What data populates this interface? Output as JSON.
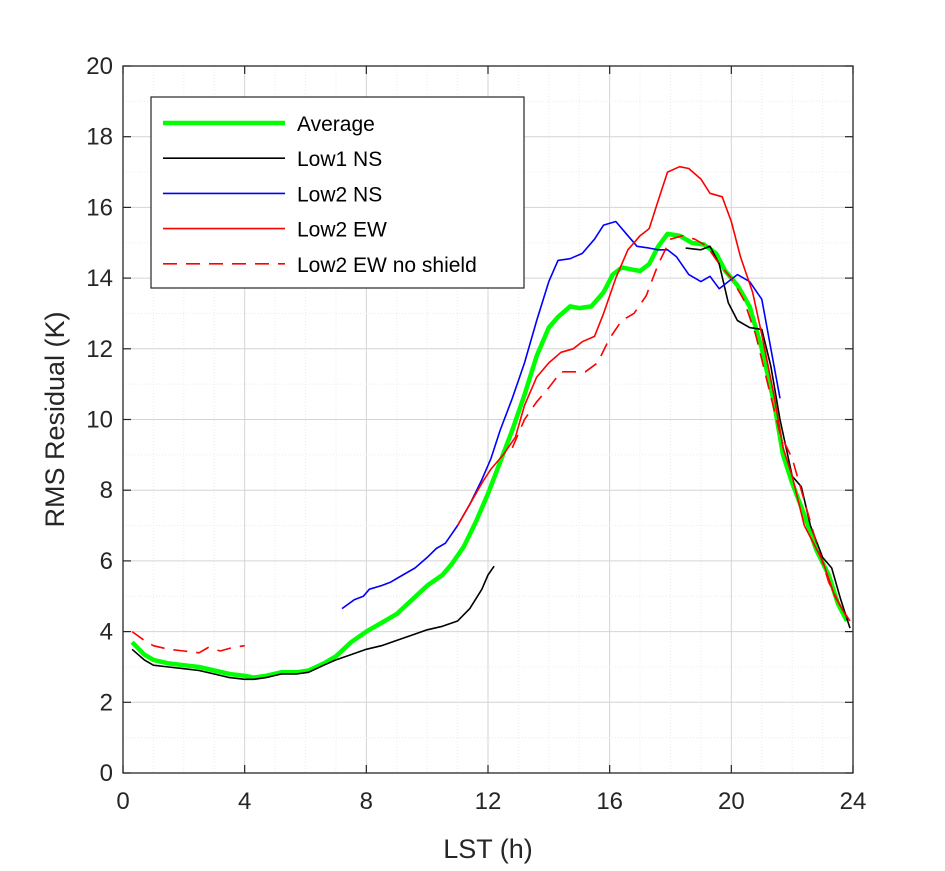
{
  "chart_data": {
    "type": "line",
    "title": "",
    "xlabel": "LST (h)",
    "ylabel": "RMS Residual (K)",
    "xlim": [
      0,
      24
    ],
    "ylim": [
      0,
      20
    ],
    "xticks": [
      0,
      4,
      8,
      12,
      16,
      20,
      24
    ],
    "yticks": [
      0,
      2,
      4,
      6,
      8,
      10,
      12,
      14,
      16,
      18,
      20
    ],
    "grid": "major and minor",
    "legend_position": "top-left",
    "series": [
      {
        "name": "Average",
        "color": "#00ff00",
        "style": "solid-thick",
        "segments": [
          [
            [
              0.3,
              3.7
            ],
            [
              0.7,
              3.35
            ],
            [
              1.0,
              3.2
            ],
            [
              1.5,
              3.1
            ],
            [
              2.0,
              3.05
            ],
            [
              2.5,
              3.0
            ],
            [
              3.0,
              2.9
            ],
            [
              3.5,
              2.8
            ],
            [
              4.0,
              2.75
            ],
            [
              4.3,
              2.7
            ],
            [
              4.7,
              2.75
            ],
            [
              5.2,
              2.85
            ],
            [
              5.7,
              2.85
            ],
            [
              6.1,
              2.9
            ],
            [
              6.6,
              3.1
            ],
            [
              7.0,
              3.3
            ],
            [
              7.5,
              3.7
            ],
            [
              8.0,
              4.0
            ],
            [
              8.5,
              4.25
            ],
            [
              9.0,
              4.5
            ],
            [
              9.5,
              4.9
            ],
            [
              10.0,
              5.3
            ],
            [
              10.5,
              5.6
            ],
            [
              10.8,
              5.9
            ],
            [
              11.2,
              6.4
            ],
            [
              11.6,
              7.1
            ],
            [
              12.0,
              7.9
            ],
            [
              12.4,
              8.8
            ],
            [
              12.8,
              9.7
            ],
            [
              13.2,
              10.7
            ],
            [
              13.6,
              11.8
            ],
            [
              14.0,
              12.6
            ],
            [
              14.3,
              12.9
            ],
            [
              14.7,
              13.2
            ],
            [
              15.0,
              13.15
            ],
            [
              15.4,
              13.2
            ],
            [
              15.8,
              13.6
            ],
            [
              16.1,
              14.1
            ],
            [
              16.4,
              14.3
            ],
            [
              16.7,
              14.25
            ],
            [
              17.0,
              14.2
            ],
            [
              17.3,
              14.4
            ],
            [
              17.6,
              14.9
            ],
            [
              17.9,
              15.25
            ],
            [
              18.3,
              15.2
            ],
            [
              18.7,
              15.0
            ],
            [
              19.1,
              14.95
            ],
            [
              19.5,
              14.7
            ],
            [
              19.8,
              14.2
            ],
            [
              20.2,
              13.8
            ],
            [
              20.6,
              13.2
            ],
            [
              21.0,
              12.0
            ],
            [
              21.4,
              10.5
            ],
            [
              21.7,
              9.0
            ],
            [
              22.0,
              8.2
            ],
            [
              22.4,
              7.3
            ],
            [
              22.8,
              6.3
            ],
            [
              23.2,
              5.6
            ],
            [
              23.5,
              4.8
            ],
            [
              23.8,
              4.3
            ]
          ]
        ]
      },
      {
        "name": "Low1 NS",
        "color": "#000000",
        "style": "solid",
        "segments": [
          [
            [
              0.3,
              3.5
            ],
            [
              0.7,
              3.2
            ],
            [
              1.0,
              3.05
            ],
            [
              1.5,
              3.0
            ],
            [
              2.0,
              2.95
            ],
            [
              2.5,
              2.9
            ],
            [
              3.0,
              2.8
            ],
            [
              3.5,
              2.7
            ],
            [
              4.0,
              2.65
            ],
            [
              4.3,
              2.65
            ],
            [
              4.7,
              2.7
            ],
            [
              5.2,
              2.8
            ],
            [
              5.7,
              2.8
            ],
            [
              6.1,
              2.85
            ],
            [
              6.6,
              3.05
            ],
            [
              7.0,
              3.2
            ],
            [
              7.5,
              3.35
            ],
            [
              8.0,
              3.5
            ],
            [
              8.5,
              3.6
            ],
            [
              9.0,
              3.75
            ],
            [
              9.5,
              3.9
            ],
            [
              10.0,
              4.05
            ],
            [
              10.5,
              4.15
            ],
            [
              11.0,
              4.3
            ],
            [
              11.4,
              4.65
            ],
            [
              11.8,
              5.2
            ],
            [
              12.0,
              5.6
            ],
            [
              12.2,
              5.85
            ]
          ],
          [
            [
              18.5,
              14.85
            ],
            [
              19.0,
              14.8
            ],
            [
              19.3,
              14.9
            ],
            [
              19.6,
              14.4
            ],
            [
              19.9,
              13.3
            ],
            [
              20.2,
              12.8
            ],
            [
              20.6,
              12.6
            ],
            [
              21.0,
              12.55
            ],
            [
              21.3,
              11.5
            ],
            [
              21.6,
              10.0
            ],
            [
              22.0,
              8.4
            ],
            [
              22.3,
              8.1
            ],
            [
              22.6,
              7.0
            ],
            [
              23.0,
              6.1
            ],
            [
              23.3,
              5.8
            ],
            [
              23.6,
              4.9
            ],
            [
              23.9,
              4.1
            ]
          ]
        ]
      },
      {
        "name": "Low2 NS",
        "color": "#0000ff",
        "style": "solid",
        "segments": [
          [
            [
              7.2,
              4.65
            ],
            [
              7.6,
              4.9
            ],
            [
              7.9,
              5.0
            ],
            [
              8.1,
              5.2
            ],
            [
              8.5,
              5.3
            ],
            [
              8.8,
              5.4
            ],
            [
              9.2,
              5.6
            ],
            [
              9.6,
              5.8
            ],
            [
              10.0,
              6.1
            ],
            [
              10.3,
              6.35
            ],
            [
              10.6,
              6.5
            ],
            [
              11.0,
              7.0
            ],
            [
              11.4,
              7.6
            ],
            [
              11.8,
              8.3
            ],
            [
              12.1,
              8.9
            ],
            [
              12.4,
              9.7
            ],
            [
              12.8,
              10.6
            ],
            [
              13.2,
              11.6
            ],
            [
              13.6,
              12.8
            ],
            [
              14.0,
              13.9
            ],
            [
              14.3,
              14.5
            ],
            [
              14.7,
              14.55
            ],
            [
              15.1,
              14.7
            ],
            [
              15.5,
              15.1
            ],
            [
              15.8,
              15.5
            ],
            [
              16.2,
              15.6
            ],
            [
              16.6,
              15.2
            ],
            [
              16.9,
              14.9
            ],
            [
              17.3,
              14.85
            ],
            [
              17.6,
              14.8
            ],
            [
              17.9,
              14.8
            ],
            [
              18.2,
              14.6
            ],
            [
              18.6,
              14.1
            ],
            [
              19.0,
              13.9
            ],
            [
              19.3,
              14.05
            ],
            [
              19.6,
              13.7
            ],
            [
              19.9,
              13.9
            ],
            [
              20.2,
              14.1
            ],
            [
              20.6,
              13.9
            ],
            [
              21.0,
              13.4
            ],
            [
              21.3,
              12.0
            ],
            [
              21.6,
              10.6
            ]
          ]
        ]
      },
      {
        "name": "Low2 EW",
        "color": "#ff0000",
        "style": "solid",
        "segments": [
          [
            [
              11.0,
              7.0
            ],
            [
              11.4,
              7.6
            ],
            [
              11.8,
              8.2
            ],
            [
              12.1,
              8.6
            ],
            [
              12.5,
              9.0
            ],
            [
              12.9,
              9.5
            ],
            [
              13.2,
              10.4
            ],
            [
              13.6,
              11.2
            ],
            [
              14.0,
              11.6
            ],
            [
              14.4,
              11.9
            ],
            [
              14.8,
              12.0
            ],
            [
              15.1,
              12.2
            ],
            [
              15.5,
              12.35
            ],
            [
              15.8,
              13.0
            ],
            [
              16.2,
              14.0
            ],
            [
              16.6,
              14.8
            ],
            [
              17.0,
              15.2
            ],
            [
              17.3,
              15.4
            ],
            [
              17.6,
              16.2
            ],
            [
              17.9,
              17.0
            ],
            [
              18.3,
              17.15
            ],
            [
              18.6,
              17.1
            ],
            [
              19.0,
              16.8
            ],
            [
              19.3,
              16.4
            ],
            [
              19.7,
              16.3
            ],
            [
              20.0,
              15.6
            ],
            [
              20.3,
              14.6
            ],
            [
              20.7,
              13.6
            ],
            [
              21.0,
              12.4
            ],
            [
              21.4,
              10.7
            ],
            [
              21.7,
              9.2
            ],
            [
              22.0,
              8.4
            ],
            [
              22.4,
              7.0
            ],
            [
              22.7,
              6.5
            ],
            [
              23.0,
              6.0
            ],
            [
              23.4,
              5.0
            ],
            [
              23.8,
              4.4
            ]
          ]
        ]
      },
      {
        "name": "Low2 EW no shield",
        "color": "#ff0000",
        "style": "dashed",
        "segments": [
          [
            [
              0.3,
              4.0
            ],
            [
              0.7,
              3.75
            ],
            [
              1.0,
              3.6
            ],
            [
              1.5,
              3.5
            ],
            [
              2.0,
              3.45
            ],
            [
              2.5,
              3.4
            ],
            [
              2.8,
              3.55
            ],
            [
              3.2,
              3.45
            ],
            [
              3.6,
              3.55
            ],
            [
              4.0,
              3.6
            ]
          ],
          [
            [
              12.8,
              9.2
            ],
            [
              13.2,
              10.0
            ],
            [
              13.6,
              10.5
            ],
            [
              14.0,
              10.9
            ],
            [
              14.4,
              11.35
            ],
            [
              14.8,
              11.35
            ],
            [
              15.2,
              11.35
            ],
            [
              15.6,
              11.6
            ],
            [
              16.0,
              12.3
            ],
            [
              16.4,
              12.8
            ],
            [
              16.8,
              13.0
            ],
            [
              17.2,
              13.5
            ],
            [
              17.6,
              14.4
            ],
            [
              18.0,
              15.1
            ],
            [
              18.4,
              15.2
            ],
            [
              18.8,
              15.1
            ],
            [
              19.2,
              14.9
            ],
            [
              19.6,
              14.4
            ],
            [
              20.0,
              14.0
            ],
            [
              20.4,
              13.4
            ],
            [
              20.8,
              12.4
            ],
            [
              21.2,
              11.0
            ],
            [
              21.6,
              9.6
            ],
            [
              22.0,
              8.9
            ],
            [
              22.4,
              7.7
            ],
            [
              22.8,
              6.5
            ],
            [
              23.2,
              5.4
            ],
            [
              23.6,
              4.7
            ],
            [
              23.9,
              4.3
            ]
          ]
        ]
      }
    ]
  }
}
